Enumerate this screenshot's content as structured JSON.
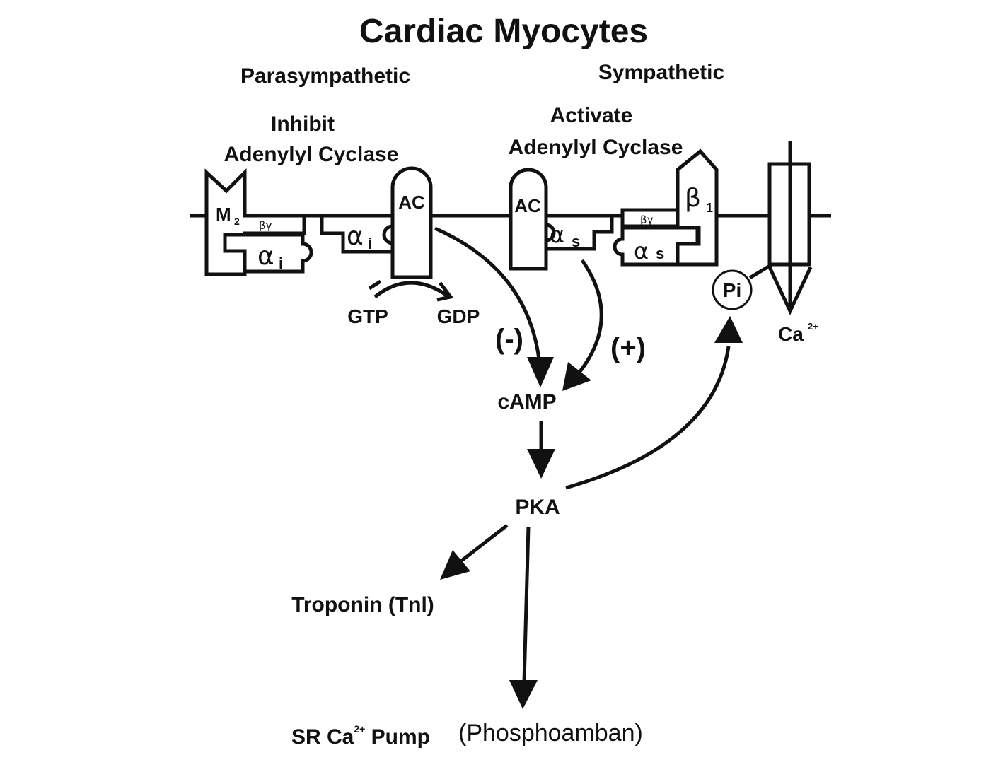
{
  "title": "Cardiac Myocytes",
  "parasympathetic": {
    "heading": "Parasympathetic",
    "action_line1": "Inhibit",
    "action_line2": "Adenylyl Cyclase",
    "receptor": "M",
    "receptor_sub": "2",
    "beta_gamma": "βγ",
    "alpha_free": "α",
    "alpha_sub": "i",
    "alpha_bound": "α",
    "alpha_bound_sub": "i",
    "enzyme": "AC",
    "gtp": "GTP",
    "gdp": "GDP",
    "effect": "(-)"
  },
  "sympathetic": {
    "heading": "Sympathetic",
    "action_line1": "Activate",
    "action_line2": "Adenylyl Cyclase",
    "receptor": "β",
    "receptor_sub": "1",
    "beta_gamma": "βγ",
    "alpha_bound": "α",
    "alpha_bound_sub": "s",
    "alpha_free": "α",
    "alpha_sub": "s",
    "enzyme": "AC",
    "effect": "(+)"
  },
  "channel": {
    "phosphate": "Pi",
    "ion": "Ca",
    "ion_sup": "2+"
  },
  "pathway": {
    "second_messenger": "cAMP",
    "kinase": "PKA",
    "target1": "Troponin (Tnl)",
    "target2_main": "SR Ca",
    "target2_sup": "2+",
    "target2_tail": " Pump",
    "target2_note": "(Phosphoamban)"
  }
}
